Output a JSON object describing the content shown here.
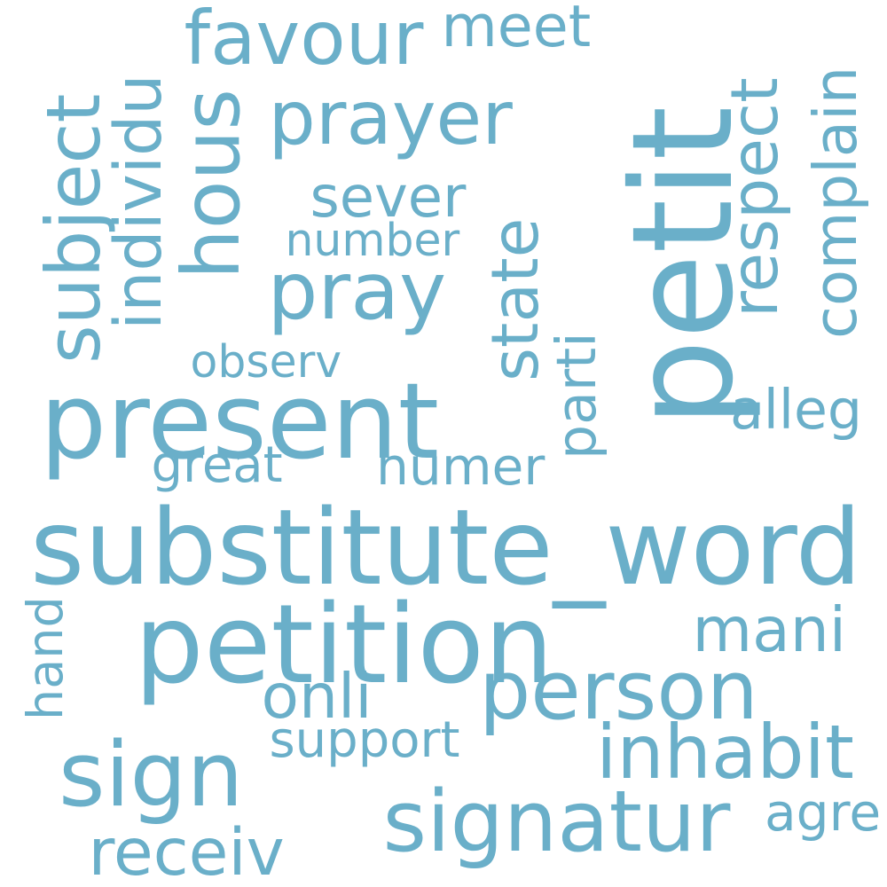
{
  "cloud": {
    "color": "#6aafc9",
    "words": [
      {
        "text": "petit",
        "orientation": "vertical"
      },
      {
        "text": "substitute_word",
        "orientation": "horizontal"
      },
      {
        "text": "petition",
        "orientation": "horizontal"
      },
      {
        "text": "present",
        "orientation": "horizontal"
      },
      {
        "text": "signatur",
        "orientation": "horizontal"
      },
      {
        "text": "sign",
        "orientation": "horizontal"
      },
      {
        "text": "inhabit",
        "orientation": "horizontal"
      },
      {
        "text": "person",
        "orientation": "horizontal"
      },
      {
        "text": "pray",
        "orientation": "horizontal"
      },
      {
        "text": "prayer",
        "orientation": "horizontal"
      },
      {
        "text": "favour",
        "orientation": "horizontal"
      },
      {
        "text": "hous",
        "orientation": "vertical"
      },
      {
        "text": "subject",
        "orientation": "vertical"
      },
      {
        "text": "complain",
        "orientation": "vertical"
      },
      {
        "text": "respect",
        "orientation": "vertical"
      },
      {
        "text": "individu",
        "orientation": "vertical"
      },
      {
        "text": "state",
        "orientation": "vertical"
      },
      {
        "text": "receiv",
        "orientation": "horizontal"
      },
      {
        "text": "mani",
        "orientation": "horizontal"
      },
      {
        "text": "onli",
        "orientation": "horizontal"
      },
      {
        "text": "meet",
        "orientation": "horizontal"
      },
      {
        "text": "sever",
        "orientation": "horizontal"
      },
      {
        "text": "numer",
        "orientation": "horizontal"
      },
      {
        "text": "alleg",
        "orientation": "horizontal"
      },
      {
        "text": "parti",
        "orientation": "vertical"
      },
      {
        "text": "agre",
        "orientation": "horizontal"
      },
      {
        "text": "number",
        "orientation": "horizontal"
      },
      {
        "text": "observ",
        "orientation": "horizontal"
      },
      {
        "text": "great",
        "orientation": "horizontal"
      },
      {
        "text": "support",
        "orientation": "horizontal"
      },
      {
        "text": "hand",
        "orientation": "vertical"
      }
    ]
  }
}
